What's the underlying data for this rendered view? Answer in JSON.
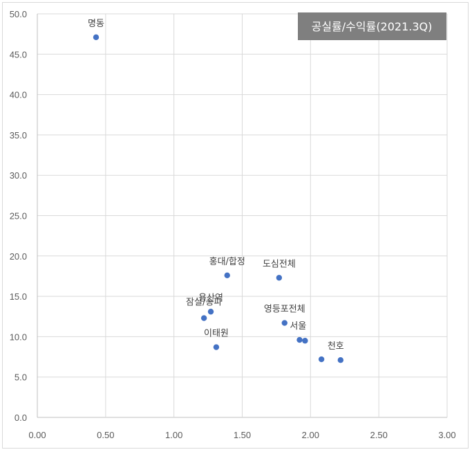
{
  "chart_data": {
    "type": "scatter",
    "title": "공실률/수익률(2021.3Q)",
    "xlabel": "",
    "ylabel": "",
    "xlim": [
      0,
      3
    ],
    "ylim": [
      0,
      50
    ],
    "grid": true,
    "marker_color": "#4472c4",
    "x_ticks": [
      "0.00",
      "0.50",
      "1.00",
      "1.50",
      "2.00",
      "2.50",
      "3.00"
    ],
    "y_ticks": [
      "0.0",
      "5.0",
      "10.0",
      "15.0",
      "20.0",
      "25.0",
      "30.0",
      "35.0",
      "40.0",
      "45.0",
      "50.0"
    ],
    "points": [
      {
        "label": "명동",
        "x": 0.43,
        "y": 47.1
      },
      {
        "label": "홍대/합정",
        "x": 1.39,
        "y": 17.6
      },
      {
        "label": "도심전체",
        "x": 1.77,
        "y": 17.3
      },
      {
        "label": "용산역",
        "x": 1.27,
        "y": 13.1
      },
      {
        "label": "잠실/송파",
        "x": 1.22,
        "y": 12.3
      },
      {
        "label": "이태원",
        "x": 1.31,
        "y": 8.7
      },
      {
        "label": "영등포전체",
        "x": 1.81,
        "y": 11.7
      },
      {
        "label": "",
        "x": 1.92,
        "y": 9.6
      },
      {
        "label": "서울",
        "x": 1.96,
        "y": 9.5
      },
      {
        "label": "",
        "x": 2.08,
        "y": 7.2
      },
      {
        "label": "천호",
        "x": 2.22,
        "y": 7.1
      }
    ]
  }
}
